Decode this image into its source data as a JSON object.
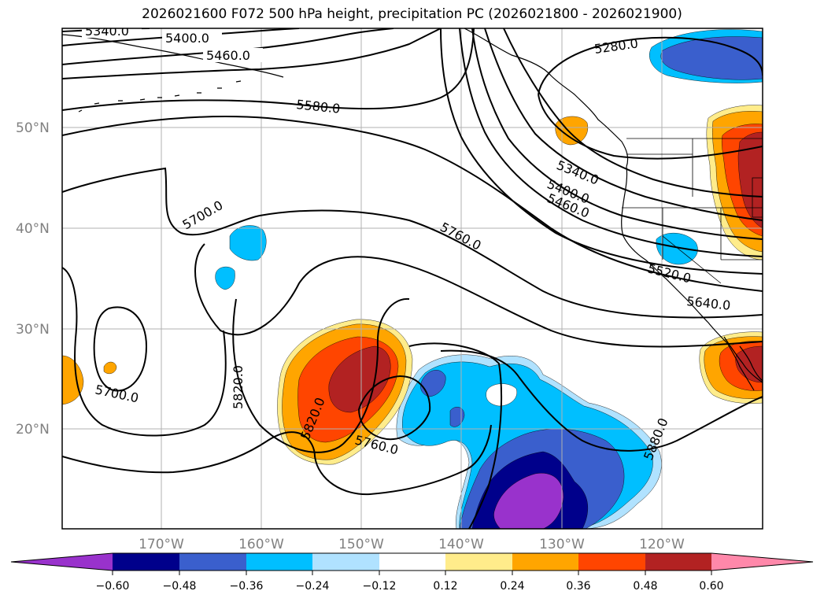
{
  "title": "2026021600 F072 500 hPa height, precipitation PC (2026021800 - 2026021900)",
  "latitude_labels": [
    "50°N",
    "40°N",
    "30°N",
    "20°N"
  ],
  "longitude_labels": [
    "170°W",
    "160°W",
    "150°W",
    "140°W",
    "130°W",
    "120°W"
  ],
  "contour_labels": [
    "5340.0",
    "5400.0",
    "5460.0",
    "5580.0",
    "5280.0",
    "5700.0",
    "5340.0",
    "5400.0",
    "5460.0",
    "5760.0",
    "5520.0",
    "5640.0",
    "5700.0",
    "5820.0",
    "5820.0",
    "5760.0",
    "5880.0"
  ],
  "colorbar": {
    "ticks": [
      "−0.60",
      "−0.48",
      "−0.36",
      "−0.24",
      "−0.12",
      "0.12",
      "0.24",
      "0.36",
      "0.48",
      "0.60"
    ],
    "colors": [
      "#9932cc",
      "#00008b",
      "#3a5fcd",
      "#00bfff",
      "#b0e2ff",
      "#ffffff",
      "#ffec8b",
      "#ffa500",
      "#ff4500",
      "#b22222",
      "#ff88aa"
    ]
  },
  "field_colors": {
    "neg_light": "#b0e2ff",
    "neg_cyan": "#00bfff",
    "neg_blue": "#3a5fcd",
    "neg_navy": "#00008b",
    "neg_purple": "#9932cc",
    "pos_yellow": "#ffec8b",
    "pos_orange": "#ffa500",
    "pos_red": "#ff4500",
    "pos_dark": "#b22222"
  }
}
